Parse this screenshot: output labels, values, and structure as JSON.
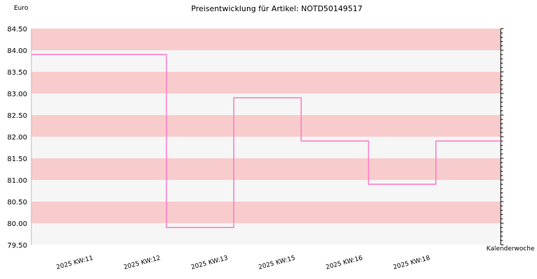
{
  "chart_data": {
    "type": "line",
    "step": true,
    "title": "Preisentwicklung für Artikel: NOTD50149517",
    "ylabel": "Euro",
    "xlabel": "Kalenderwoche",
    "ylim": [
      79.5,
      84.5
    ],
    "y_ticks": [
      "79.50",
      "80.00",
      "80.50",
      "81.00",
      "81.50",
      "82.00",
      "82.50",
      "83.00",
      "83.50",
      "84.00",
      "84.50"
    ],
    "categories": [
      "2025 KW:11",
      "2025 KW:12",
      "2025 KW:13",
      "2025 KW:15",
      "2025 KW:16",
      "2025 KW:18"
    ],
    "series": [
      {
        "values": [
          83.9,
          79.9,
          82.9,
          81.9,
          80.9,
          81.9
        ]
      }
    ],
    "band_colors": [
      "#f8cccc",
      "#f6f6f6"
    ],
    "line_color": "#ff7fc8",
    "grid": true
  }
}
